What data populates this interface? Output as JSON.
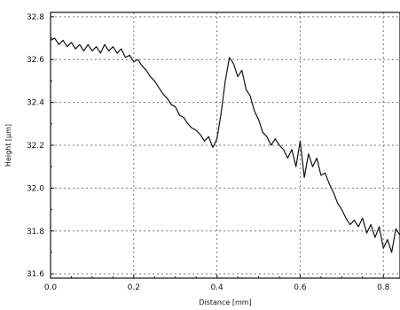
{
  "chart_data": {
    "type": "line",
    "title": "",
    "xlabel": "Distance [mm]",
    "ylabel": "Height [µm]",
    "xlim": [
      0.0,
      0.84
    ],
    "ylim": [
      31.58,
      32.82
    ],
    "xticks": [
      0.0,
      0.2,
      0.4,
      0.6,
      0.8
    ],
    "xtick_labels": [
      "0.0",
      "0.2",
      "0.4",
      "0.6",
      "0.8"
    ],
    "yticks": [
      31.6,
      31.8,
      32.0,
      32.2,
      32.4,
      32.6,
      32.8
    ],
    "ytick_labels": [
      "31.6",
      "31.8",
      "32.0",
      "32.2",
      "32.4",
      "32.6",
      "32.8"
    ],
    "grid": true,
    "series": [
      {
        "name": "",
        "x": [
          0.0,
          0.01,
          0.02,
          0.03,
          0.04,
          0.05,
          0.06,
          0.07,
          0.08,
          0.09,
          0.1,
          0.11,
          0.12,
          0.13,
          0.14,
          0.15,
          0.16,
          0.17,
          0.18,
          0.19,
          0.2,
          0.21,
          0.22,
          0.23,
          0.24,
          0.25,
          0.26,
          0.27,
          0.28,
          0.29,
          0.3,
          0.31,
          0.32,
          0.33,
          0.34,
          0.35,
          0.36,
          0.37,
          0.38,
          0.39,
          0.4,
          0.41,
          0.42,
          0.43,
          0.44,
          0.45,
          0.46,
          0.47,
          0.48,
          0.49,
          0.5,
          0.51,
          0.52,
          0.53,
          0.54,
          0.55,
          0.56,
          0.57,
          0.58,
          0.59,
          0.6,
          0.61,
          0.62,
          0.63,
          0.64,
          0.65,
          0.66,
          0.67,
          0.68,
          0.69,
          0.7,
          0.71,
          0.72,
          0.73,
          0.74,
          0.75,
          0.76,
          0.77,
          0.78,
          0.79,
          0.8,
          0.81,
          0.82,
          0.83,
          0.84
        ],
        "y": [
          32.69,
          32.7,
          32.67,
          32.69,
          32.66,
          32.68,
          32.65,
          32.67,
          32.64,
          32.67,
          32.64,
          32.66,
          32.63,
          32.67,
          32.64,
          32.66,
          32.63,
          32.65,
          32.61,
          32.62,
          32.59,
          32.6,
          32.57,
          32.55,
          32.52,
          32.5,
          32.47,
          32.44,
          32.42,
          32.39,
          32.38,
          32.34,
          32.33,
          32.3,
          32.28,
          32.27,
          32.25,
          32.22,
          32.24,
          32.19,
          32.23,
          32.35,
          32.5,
          32.61,
          32.58,
          32.52,
          32.55,
          32.46,
          32.43,
          32.36,
          32.32,
          32.26,
          32.24,
          32.2,
          32.23,
          32.2,
          32.18,
          32.14,
          32.18,
          32.1,
          32.22,
          32.05,
          32.16,
          32.1,
          32.14,
          32.06,
          32.07,
          32.02,
          31.98,
          31.93,
          31.9,
          31.86,
          31.83,
          31.85,
          31.82,
          31.86,
          31.79,
          31.83,
          31.77,
          31.82,
          31.72,
          31.76,
          31.7,
          31.81,
          31.78
        ]
      }
    ],
    "colors": {
      "line": "#111111",
      "grid": "#777777",
      "axis": "#111111",
      "background": "#ffffff"
    }
  }
}
